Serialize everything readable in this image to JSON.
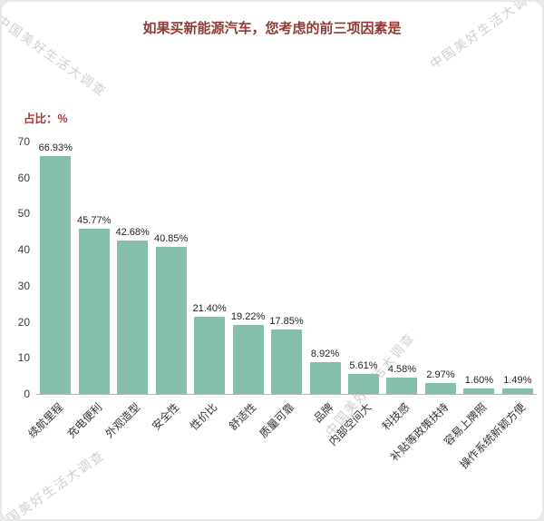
{
  "watermark": {
    "text": "中国美好生活大调查",
    "color": "#c9c9c9"
  },
  "chart_data": {
    "type": "bar",
    "title": "如果买新能源汽车，您考虑的前三项因素是",
    "ylabel": "占比：%",
    "xlabel": "",
    "categories": [
      "续航里程",
      "充电便利",
      "外观造型",
      "安全性",
      "性价比",
      "舒适性",
      "质量可靠",
      "品牌",
      "内部空间大",
      "科技感",
      "补贴等政策扶持",
      "容易上牌照",
      "操作系统新颖方便"
    ],
    "values": [
      66.93,
      45.77,
      42.68,
      40.85,
      21.4,
      19.22,
      17.85,
      8.92,
      5.61,
      4.58,
      2.97,
      1.6,
      1.49
    ],
    "value_labels": [
      "66.93%",
      "45.77%",
      "42.68%",
      "40.85%",
      "21.40%",
      "19.22%",
      "17.85%",
      "8.92%",
      "5.61%",
      "4.58%",
      "2.97%",
      "1.60%",
      "1.49%"
    ],
    "yticks": [
      0,
      10,
      20,
      30,
      40,
      50,
      60,
      70
    ],
    "ylim": [
      0,
      70
    ],
    "grid": false,
    "legend": false,
    "bar_color": "#84bfae"
  }
}
